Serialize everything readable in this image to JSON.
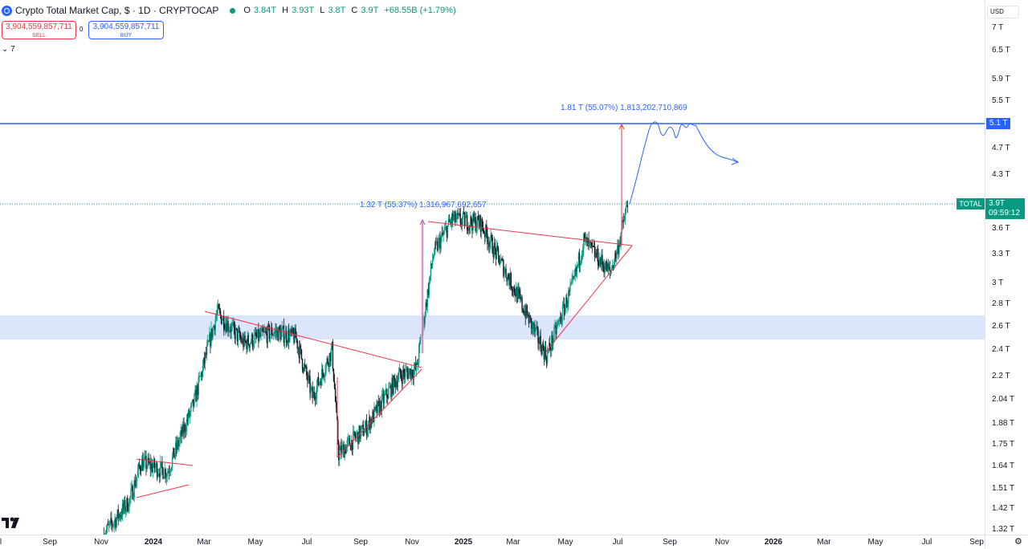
{
  "header": {
    "title": "Crypto Total Market Cap, $ · 1D · CRYPTOCAP",
    "ohlc": [
      {
        "label": "O",
        "value": "3.84T"
      },
      {
        "label": "H",
        "value": "3.93T"
      },
      {
        "label": "L",
        "value": "3.8T"
      },
      {
        "label": "C",
        "value": "3.9T"
      }
    ],
    "change": "+68.55B (+1.79%)"
  },
  "trade": {
    "sell_price": "3,904,559,857,711",
    "sell_label": "SELL",
    "spread": "0",
    "buy_price": "3,904,559,857,711",
    "buy_label": "BUY"
  },
  "indicators_toggle": "7",
  "currency": "USD",
  "price_axis": [
    "7 T",
    "6.5 T",
    "5.9 T",
    "5.5 T",
    "4.7 T",
    "4.3 T",
    "3.6 T",
    "3.3 T",
    "3 T",
    "2.8 T",
    "2.6 T",
    "2.4 T",
    "2.2 T",
    "2.04 T",
    "1.88 T",
    "1.75 T",
    "1.64 T",
    "1.51 T",
    "1.42 T",
    "1.32 T"
  ],
  "time_axis": [
    {
      "label": "l",
      "bold": false
    },
    {
      "label": "Sep",
      "bold": false
    },
    {
      "label": "Nov",
      "bold": false
    },
    {
      "label": "2024",
      "bold": true
    },
    {
      "label": "Mar",
      "bold": false
    },
    {
      "label": "May",
      "bold": false
    },
    {
      "label": "Jul",
      "bold": false
    },
    {
      "label": "Sep",
      "bold": false
    },
    {
      "label": "Nov",
      "bold": false
    },
    {
      "label": "2025",
      "bold": true
    },
    {
      "label": "Mar",
      "bold": false
    },
    {
      "label": "May",
      "bold": false
    },
    {
      "label": "Jul",
      "bold": false
    },
    {
      "label": "Sep",
      "bold": false
    },
    {
      "label": "Nov",
      "bold": false
    },
    {
      "label": "2026",
      "bold": true
    },
    {
      "label": "Mar",
      "bold": false
    },
    {
      "label": "May",
      "bold": false
    },
    {
      "label": "Jul",
      "bold": false
    },
    {
      "label": "Sep",
      "bold": false
    }
  ],
  "level_tag": "5.1 T",
  "current": {
    "symbol": "TOTAL",
    "price": "3.9T",
    "countdown": "09:59:12"
  },
  "annotations": {
    "measure_2024": "1.32 T (55.37%) 1,316,967,692,657",
    "measure_2025": "1.81 T (55.07%) 1,813,202,710,869"
  },
  "colors": {
    "up": "#089981",
    "down": "#131722",
    "trendline": "#f23645",
    "accent": "#2962ff",
    "zone": "#dbe6fd"
  },
  "chart_data": {
    "type": "candlestick",
    "title": "Crypto Total Market Cap, $ · 1D · CRYPTOCAP",
    "x_range": [
      "2023-07",
      "2026-09"
    ],
    "y_scale": "log",
    "y_range_T": [
      1.32,
      7
    ],
    "series": [
      {
        "values": [
          {
            "x": "2023-11-01",
            "y": 1.3
          },
          {
            "x": "2023-12-01",
            "y": 1.45
          },
          {
            "x": "2023-12-15",
            "y": 1.65
          },
          {
            "x": "2024-01-15",
            "y": 1.6
          },
          {
            "x": "2024-02-15",
            "y": 2.0
          },
          {
            "x": "2024-03-14",
            "y": 2.72
          },
          {
            "x": "2024-04-15",
            "y": 2.45
          },
          {
            "x": "2024-05-20",
            "y": 2.55
          },
          {
            "x": "2024-06-15",
            "y": 2.5
          },
          {
            "x": "2024-07-05",
            "y": 2.05
          },
          {
            "x": "2024-07-28",
            "y": 2.4
          },
          {
            "x": "2024-08-05",
            "y": 1.7
          },
          {
            "x": "2024-09-06",
            "y": 1.85
          },
          {
            "x": "2024-10-15",
            "y": 2.2
          },
          {
            "x": "2024-11-05",
            "y": 2.25
          },
          {
            "x": "2024-11-25",
            "y": 3.3
          },
          {
            "x": "2024-12-17",
            "y": 3.7
          },
          {
            "x": "2025-01-20",
            "y": 3.65
          },
          {
            "x": "2025-02-25",
            "y": 3.0
          },
          {
            "x": "2025-04-08",
            "y": 2.35
          },
          {
            "x": "2025-05-10",
            "y": 3.0
          },
          {
            "x": "2025-05-22",
            "y": 3.45
          },
          {
            "x": "2025-06-22",
            "y": 3.1
          },
          {
            "x": "2025-07-01",
            "y": 3.35
          },
          {
            "x": "2025-07-13",
            "y": 3.9
          }
        ]
      }
    ],
    "levels": [
      {
        "value_T": 5.1
      }
    ],
    "zones": [
      {
        "from_T": 2.5,
        "to_T": 2.75
      }
    ],
    "measures": [
      {
        "from_T": 2.38,
        "to_T": 3.7,
        "text": "1.32 T (55.37%) 1,316,967,692,657"
      },
      {
        "from_T": 3.29,
        "to_T": 5.1,
        "text": "1.81 T (55.07%) 1,813,202,710,869"
      }
    ],
    "projection": [
      {
        "x": "2025-07-13",
        "y": 3.9
      },
      {
        "x": "2025-08-20",
        "y": 5.15
      },
      {
        "x": "2025-09-05",
        "y": 4.9
      },
      {
        "x": "2025-09-25",
        "y": 5.1
      },
      {
        "x": "2025-11-25",
        "y": 4.5
      }
    ]
  }
}
